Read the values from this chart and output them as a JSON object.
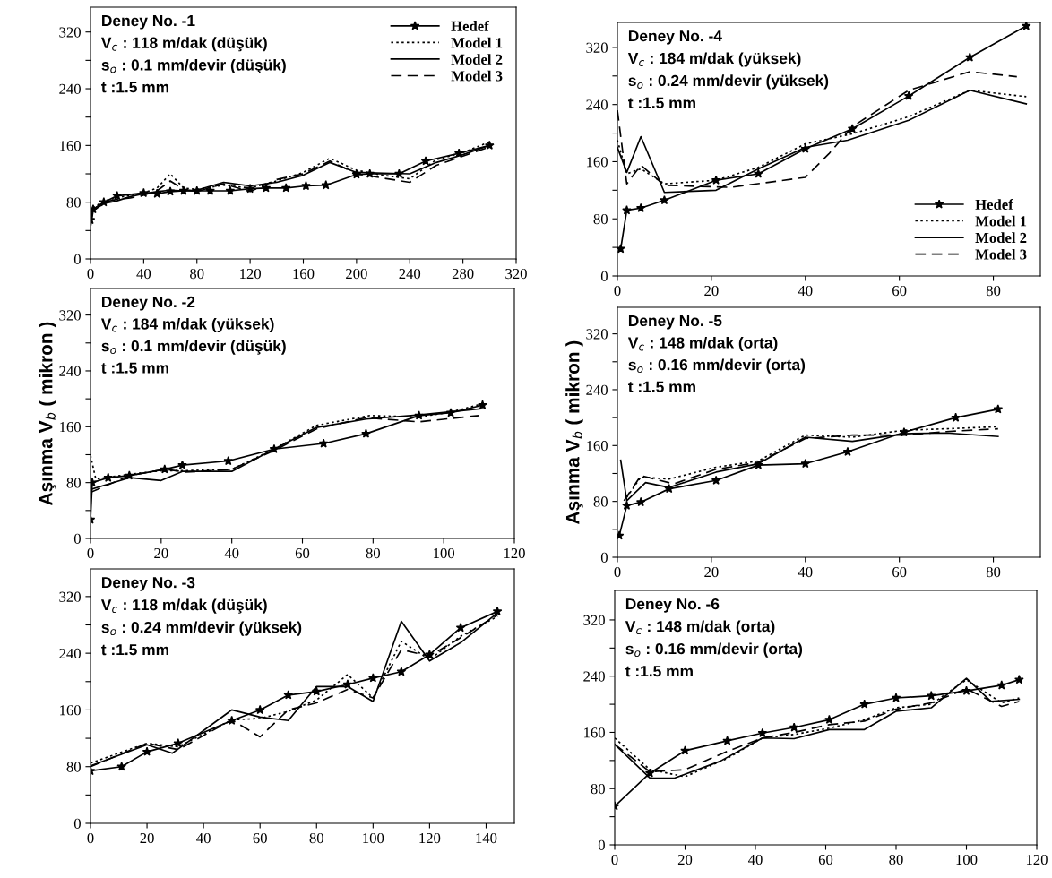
{
  "chart_data": [
    {
      "type": "line",
      "xlim": [
        0,
        320
      ],
      "ylim": [
        0,
        355
      ],
      "xticks": [
        0,
        40,
        80,
        120,
        160,
        200,
        240,
        280,
        320
      ],
      "yticks": [
        0,
        {
          "value": 40,
          "label": null
        },
        80,
        {
          "value": 120,
          "label": null
        },
        160,
        {
          "value": 200,
          "label": null
        },
        240,
        {
          "value": 280,
          "label": null
        },
        320
      ],
      "legend": "top right",
      "annotations": [
        "Deney No. -1",
        "V$_{c}$ : 118 m/dak (düşük)",
        "s$_{o}$ : 0.1 mm/devir (düşük)",
        "t :1.5 mm"
      ],
      "series": [
        {
          "name": "Hedef",
          "color": "#000000",
          "marker": "star",
          "line_style": "solid",
          "x": [
            0,
            2,
            10,
            20,
            40,
            50,
            60,
            70,
            80,
            90,
            105,
            120,
            132,
            147,
            162,
            177,
            200,
            210,
            232,
            252,
            277,
            300
          ],
          "values": [
            55,
            70,
            80,
            89,
            93,
            92,
            95,
            96,
            96,
            96,
            96,
            99,
            100,
            100,
            103,
            104,
            119,
            120,
            120,
            138,
            149,
            160
          ]
        },
        {
          "name": "Model 1",
          "color": "#000000",
          "marker": "none",
          "line_style": "dotted",
          "x": [
            0,
            2,
            10,
            20,
            30,
            40,
            50,
            60,
            70,
            80,
            100,
            120,
            140,
            160,
            180,
            200,
            220,
            240,
            260,
            280,
            300
          ],
          "values": [
            50,
            72,
            82,
            86,
            90,
            93,
            100,
            120,
            100,
            98,
            104,
            100,
            110,
            122,
            142,
            125,
            118,
            113,
            140,
            150,
            165
          ]
        },
        {
          "name": "Model 2",
          "color": "#000000",
          "marker": "none",
          "line_style": "solid",
          "x": [
            0,
            2,
            10,
            20,
            30,
            40,
            50,
            60,
            70,
            80,
            100,
            120,
            140,
            160,
            180,
            200,
            220,
            240,
            260,
            280,
            300
          ],
          "values": [
            45,
            68,
            78,
            82,
            88,
            92,
            95,
            97,
            96,
            97,
            108,
            103,
            108,
            118,
            136,
            122,
            121,
            120,
            136,
            147,
            160
          ]
        },
        {
          "name": "Model 3",
          "color": "#000000",
          "marker": "none",
          "line_style": "dashed",
          "x": [
            0,
            2,
            10,
            20,
            30,
            40,
            50,
            60,
            70,
            80,
            100,
            120,
            140,
            160,
            180,
            200,
            220,
            240,
            260,
            280,
            300
          ],
          "values": [
            48,
            70,
            80,
            84,
            86,
            90,
            96,
            110,
            98,
            95,
            106,
            95,
            112,
            120,
            138,
            120,
            114,
            108,
            132,
            145,
            158
          ]
        }
      ]
    },
    {
      "type": "line",
      "xlim": [
        0,
        120
      ],
      "ylim": [
        0,
        358
      ],
      "xticks": [
        0,
        20,
        40,
        60,
        80,
        100,
        120
      ],
      "yticks": [
        0,
        {
          "value": 40,
          "label": null
        },
        80,
        {
          "value": 120,
          "label": null
        },
        160,
        {
          "value": 200,
          "label": null
        },
        240,
        {
          "value": 280,
          "label": null
        },
        320
      ],
      "ylabel": "Aşınma V$_{b}$ ( mikron )",
      "annotations": [
        "Deney No. -2",
        "V$_{c}$ : 184 m/dak (yüksek)",
        "s$_{o}$ : 0.1 mm/devir (düşük)",
        "t :1.5 mm"
      ],
      "series": [
        {
          "color": "#000000",
          "marker": "star",
          "line_style": "solid",
          "x": [
            0,
            0.5,
            5,
            11,
            21,
            26,
            39,
            52,
            66,
            78,
            93,
            102,
            111
          ],
          "values": [
            27,
            80,
            87,
            90,
            99,
            105,
            111,
            128,
            136,
            150,
            176,
            180,
            191
          ]
        },
        {
          "color": "#000000",
          "marker": "none",
          "line_style": "dotted",
          "x": [
            0,
            1.5,
            11,
            20,
            26,
            40,
            52,
            64,
            79,
            93,
            102,
            111
          ],
          "values": [
            119,
            85,
            92,
            97,
            97,
            99,
            128,
            162,
            176,
            174,
            181,
            193
          ]
        },
        {
          "color": "#000000",
          "marker": "none",
          "line_style": "solid",
          "x": [
            0,
            11,
            20,
            26,
            40,
            52,
            64,
            78,
            93,
            111
          ],
          "values": [
            70,
            87,
            83,
            96,
            96,
            128,
            159,
            171,
            177,
            186
          ]
        },
        {
          "color": "#000000",
          "marker": "none",
          "line_style": "dashed",
          "x": [
            0,
            11,
            21,
            27,
            40,
            52,
            64,
            78,
            93,
            110
          ],
          "values": [
            66,
            90,
            99,
            95,
            99,
            126,
            157,
            173,
            167,
            176
          ]
        }
      ]
    },
    {
      "type": "line",
      "xlim": [
        0,
        150
      ],
      "ylim": [
        0,
        359
      ],
      "xticks": [
        0,
        20,
        40,
        60,
        80,
        100,
        120,
        140
      ],
      "yticks": [
        0,
        {
          "value": 40,
          "label": null
        },
        80,
        {
          "value": 120,
          "label": null
        },
        160,
        {
          "value": 200,
          "label": null
        },
        240,
        {
          "value": 280,
          "label": null
        },
        320
      ],
      "annotations": [
        "Deney No. -3",
        "V$_{c}$ : 118 m/dak (düşük)",
        "s$_{o}$ : 0.24 mm/devir (yüksek)",
        "t :1.5 mm"
      ],
      "series": [
        {
          "color": "#000000",
          "marker": "star",
          "line_style": "solid",
          "x": [
            0,
            11,
            20,
            31,
            50,
            60,
            70,
            80,
            91,
            100,
            110,
            120,
            131,
            144
          ],
          "values": [
            74,
            80,
            101,
            113,
            145,
            160,
            181,
            186,
            196,
            205,
            214,
            238,
            276,
            299
          ]
        },
        {
          "color": "#000000",
          "marker": "none",
          "line_style": "dotted",
          "x": [
            0,
            20,
            31,
            50,
            60,
            70,
            80,
            91,
            100,
            110,
            120,
            131,
            144
          ],
          "values": [
            85,
            113,
            108,
            146,
            148,
            158,
            174,
            210,
            177,
            257,
            231,
            264,
            292
          ]
        },
        {
          "color": "#000000",
          "marker": "none",
          "line_style": "solid",
          "x": [
            0,
            20,
            29,
            50,
            60,
            70,
            80,
            91,
            100,
            110,
            120,
            131,
            144
          ],
          "values": [
            81,
            111,
            99,
            160,
            150,
            145,
            193,
            193,
            172,
            285,
            229,
            255,
            297
          ]
        },
        {
          "color": "#000000",
          "marker": "none",
          "line_style": "dashed",
          "x": [
            0,
            20,
            31,
            50,
            60,
            70,
            80,
            91,
            100,
            110,
            120,
            131,
            144
          ],
          "values": [
            80,
            113,
            104,
            146,
            122,
            160,
            170,
            189,
            177,
            245,
            236,
            262,
            294
          ]
        }
      ]
    },
    {
      "type": "line",
      "xlim": [
        0,
        90
      ],
      "ylim": [
        0,
        355
      ],
      "xticks": [
        0,
        20,
        40,
        60,
        80
      ],
      "yticks": [
        0,
        {
          "value": 40,
          "label": null
        },
        80,
        {
          "value": 120,
          "label": null
        },
        160,
        {
          "value": 200,
          "label": null
        },
        240,
        {
          "value": 280,
          "label": null
        },
        320
      ],
      "legend": "bottom right",
      "annotations": [
        "Deney No. -4",
        "V$_{c}$ : 184 m/dak (yüksek)",
        "s$_{o}$ : 0.24 mm/devir (yüksek)",
        "t :1.5 mm"
      ],
      "series": [
        {
          "name": "Hedef",
          "color": "#000000",
          "marker": "star",
          "line_style": "solid",
          "x": [
            0.7,
            2,
            5,
            10,
            21,
            30,
            40,
            50,
            62,
            75,
            87
          ],
          "values": [
            38,
            92,
            95,
            106,
            134,
            143,
            178,
            206,
            252,
            306,
            350
          ]
        },
        {
          "name": "Model 1",
          "color": "#000000",
          "marker": "none",
          "line_style": "dotted",
          "x": [
            0,
            2,
            5,
            10,
            21,
            30,
            40,
            50,
            62,
            75,
            87
          ],
          "values": [
            190,
            143,
            150,
            129,
            134,
            152,
            185,
            199,
            223,
            260,
            251
          ]
        },
        {
          "name": "Model 2",
          "color": "#000000",
          "marker": "none",
          "line_style": "solid",
          "x": [
            0,
            2,
            5,
            10,
            21,
            30,
            40,
            49,
            62,
            75,
            87
          ],
          "values": [
            180,
            145,
            195,
            117,
            120,
            150,
            180,
            190,
            218,
            260,
            241
          ]
        },
        {
          "name": "Model 3",
          "color": "#000000",
          "marker": "none",
          "line_style": "dashed",
          "x": [
            0,
            2,
            5,
            10,
            24,
            32,
            40,
            45,
            50,
            62,
            75,
            85
          ],
          "values": [
            232,
            129,
            155,
            127,
            124,
            131,
            138,
            171,
            209,
            260,
            286,
            279
          ]
        }
      ]
    },
    {
      "type": "line",
      "xlim": [
        0,
        90
      ],
      "ylim": [
        0,
        358
      ],
      "xticks": [
        0,
        20,
        40,
        60,
        80
      ],
      "yticks": [
        0,
        {
          "value": 40,
          "label": null
        },
        80,
        {
          "value": 120,
          "label": null
        },
        160,
        {
          "value": 200,
          "label": null
        },
        240,
        {
          "value": 280,
          "label": null
        },
        320
      ],
      "ylabel": "Aşınma V$_{b}$ ( mikron )",
      "annotations": [
        "Deney No. -5",
        "V$_{c}$ : 148 m/dak (orta)",
        "s$_{o}$ : 0.16 mm/devir (orta)",
        "t :1.5 mm"
      ],
      "series": [
        {
          "color": "#000000",
          "marker": "star",
          "line_style": "solid",
          "x": [
            0.4,
            2,
            5,
            11,
            21,
            30,
            40,
            49,
            61,
            72,
            81
          ],
          "values": [
            31,
            74,
            79,
            98,
            110,
            132,
            134,
            151,
            179,
            200,
            212
          ]
        },
        {
          "color": "#000000",
          "marker": "none",
          "line_style": "dotted",
          "x": [
            2,
            5,
            11,
            21,
            30,
            40,
            50,
            61,
            70,
            81
          ],
          "values": [
            86,
            115,
            112,
            129,
            138,
            175,
            172,
            182,
            184,
            187
          ]
        },
        {
          "color": "#000000",
          "marker": "none",
          "line_style": "solid",
          "x": [
            0.7,
            2,
            6,
            11,
            21,
            30,
            40,
            50,
            61,
            70,
            81
          ],
          "values": [
            139,
            81,
            107,
            100,
            122,
            134,
            172,
            166,
            177,
            178,
            173
          ]
        },
        {
          "color": "#000000",
          "marker": "none",
          "line_style": "dashed",
          "x": [
            1.4,
            5,
            12,
            21,
            30,
            40,
            50,
            61,
            70,
            81
          ],
          "values": [
            81,
            117,
            105,
            126,
            136,
            170,
            175,
            175,
            180,
            184
          ]
        }
      ]
    },
    {
      "type": "line",
      "xlim": [
        0,
        120
      ],
      "ylim": [
        0,
        362
      ],
      "xticks": [
        0,
        20,
        40,
        60,
        80,
        100,
        120
      ],
      "yticks": [
        0,
        {
          "value": 40,
          "label": null
        },
        80,
        {
          "value": 120,
          "label": null
        },
        160,
        {
          "value": 200,
          "label": null
        },
        240,
        {
          "value": 280,
          "label": null
        },
        320
      ],
      "annotations": [
        "Deney No. -6",
        "V$_{c}$ : 148 m/dak (orta)",
        "s$_{o}$ : 0.16 mm/devir (orta)",
        "t :1.5 mm"
      ],
      "series": [
        {
          "color": "#000000",
          "marker": "star",
          "line_style": "solid",
          "x": [
            0,
            10,
            20,
            32,
            42,
            51,
            61,
            71,
            80,
            90,
            100,
            110,
            115
          ],
          "values": [
            55,
            102,
            134,
            148,
            159,
            167,
            178,
            200,
            209,
            212,
            219,
            227,
            235
          ]
        },
        {
          "color": "#000000",
          "marker": "none",
          "line_style": "dotted",
          "x": [
            0,
            10,
            20,
            32,
            42,
            51,
            61,
            71,
            80,
            90,
            100,
            110,
            115
          ],
          "values": [
            152,
            107,
            97,
            123,
            152,
            157,
            166,
            178,
            195,
            200,
            235,
            202,
            209
          ]
        },
        {
          "color": "#000000",
          "marker": "none",
          "line_style": "solid",
          "x": [
            0,
            10,
            17,
            30,
            42,
            51,
            61,
            71,
            80,
            90,
            100,
            107,
            115
          ],
          "values": [
            143,
            95,
            95,
            119,
            152,
            151,
            164,
            164,
            190,
            195,
            237,
            204,
            207
          ]
        },
        {
          "color": "#000000",
          "marker": "none",
          "line_style": "dashed",
          "x": [
            0,
            10,
            20,
            32,
            42,
            51,
            61,
            71,
            80,
            90,
            100,
            110,
            115
          ],
          "values": [
            143,
            104,
            107,
            133,
            152,
            160,
            171,
            176,
            193,
            202,
            222,
            197,
            204
          ]
        }
      ]
    }
  ]
}
